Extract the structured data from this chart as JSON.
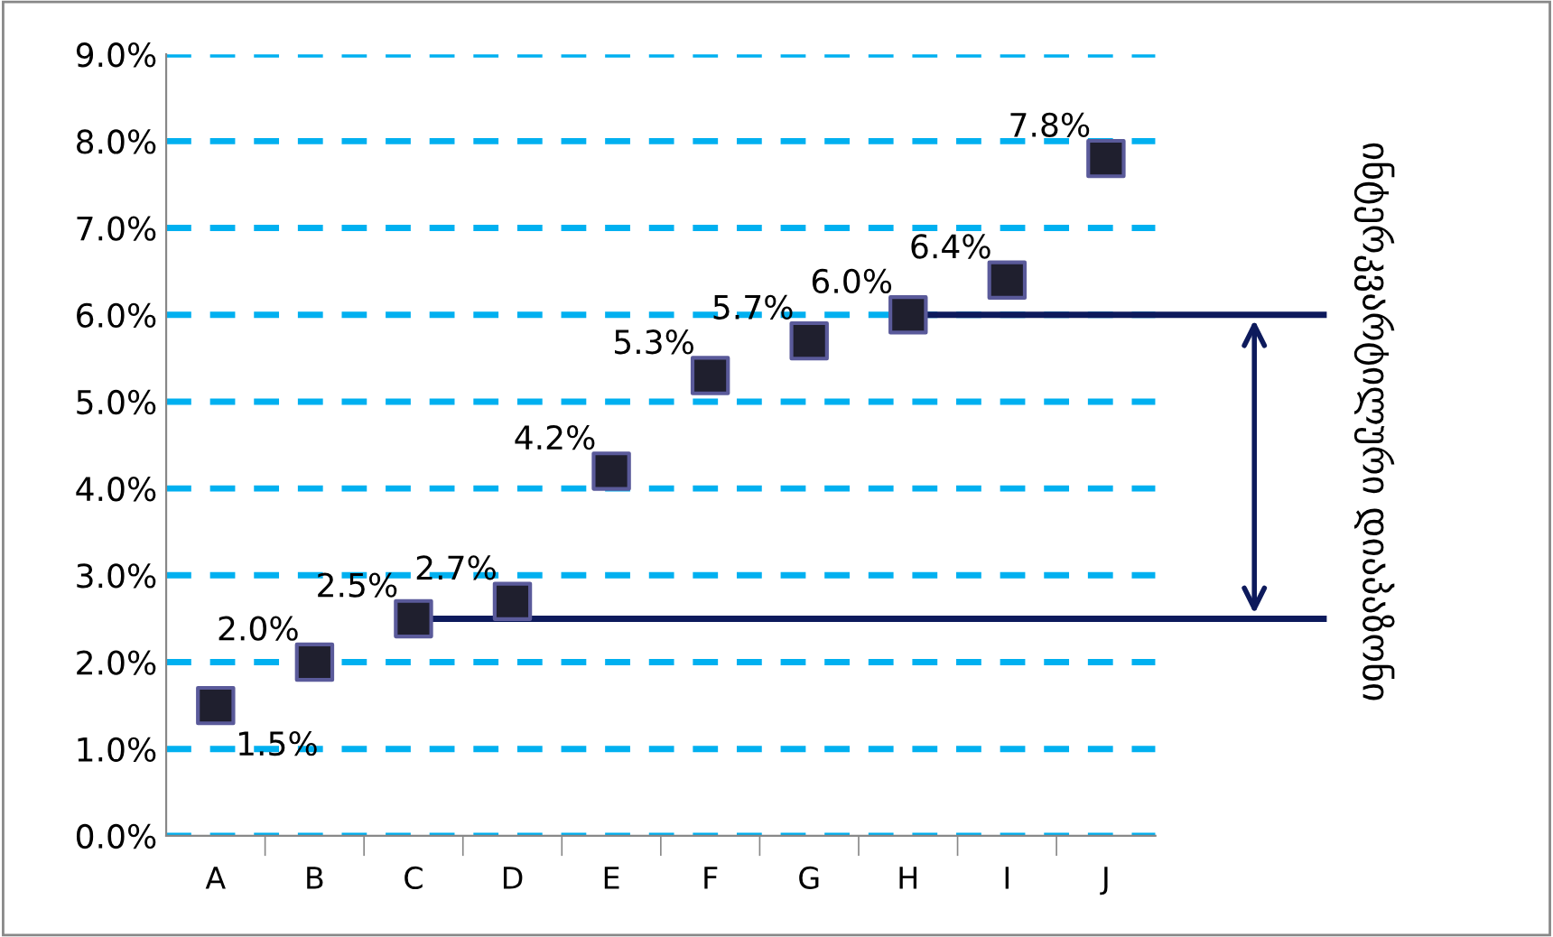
{
  "chart_data": {
    "type": "scatter",
    "categories": [
      "A",
      "B",
      "C",
      "D",
      "E",
      "F",
      "G",
      "H",
      "I",
      "J"
    ],
    "series": [
      {
        "color": "#1f1f2e",
        "values": [
          1.5,
          2.0,
          2.5,
          2.7,
          4.2,
          5.3,
          5.7,
          6.0,
          6.4,
          7.8
        ]
      }
    ],
    "ylim": [
      0,
      9
    ],
    "yticks": [
      {
        "value": 0,
        "label": "0.0%"
      },
      {
        "value": 1,
        "label": "1.0%"
      },
      {
        "value": 2,
        "label": "2.0%"
      },
      {
        "value": 3,
        "label": "3.0%"
      },
      {
        "value": 4,
        "label": "4.0%"
      },
      {
        "value": 5,
        "label": "5.0%"
      },
      {
        "value": 6,
        "label": "6.0%"
      },
      {
        "value": 7,
        "label": "7.0%"
      },
      {
        "value": 8,
        "label": "8.0%"
      },
      {
        "value": 9,
        "label": "9.0%"
      }
    ],
    "value_labels": [
      "1.5%",
      "2.0%",
      "2.5%",
      "2.7%",
      "4.2%",
      "5.3%",
      "5.7%",
      "6.0%",
      "6.4%",
      "7.8%"
    ],
    "grid": "y",
    "marker": "square",
    "ref_lines": [
      {
        "axis": "y",
        "value": 2.5,
        "color": "#0d1a5c"
      },
      {
        "axis": "y",
        "value": 6.0,
        "color": "#0d1a5c"
      }
    ],
    "annotations": [
      "ინტერკვარტილური დიაპაზონი"
    ]
  }
}
